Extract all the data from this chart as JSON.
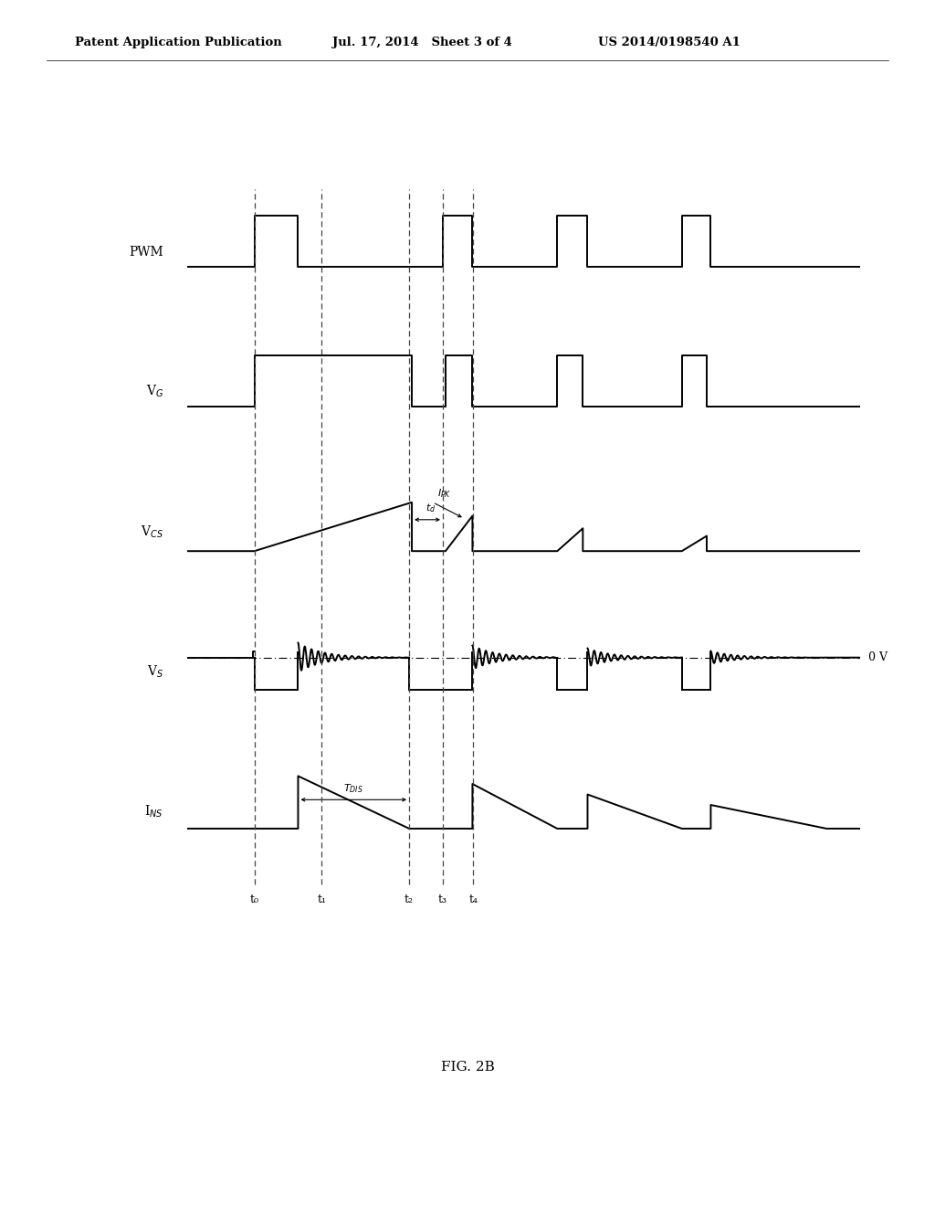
{
  "title": "FIG. 2B",
  "header_left": "Patent Application Publication",
  "header_mid": "Jul. 17, 2014   Sheet 3 of 4",
  "header_right": "US 2014/0198540 A1",
  "background_color": "#ffffff",
  "signal_color": "#000000",
  "dashed_color": "#444444",
  "t_labels": [
    "t₀",
    "t₁",
    "t₂",
    "t₃",
    "t₄"
  ],
  "signal_labels": [
    "PWM",
    "V$_G$",
    "V$_{CS}$",
    "V$_S$",
    "I$_{NS}$"
  ]
}
